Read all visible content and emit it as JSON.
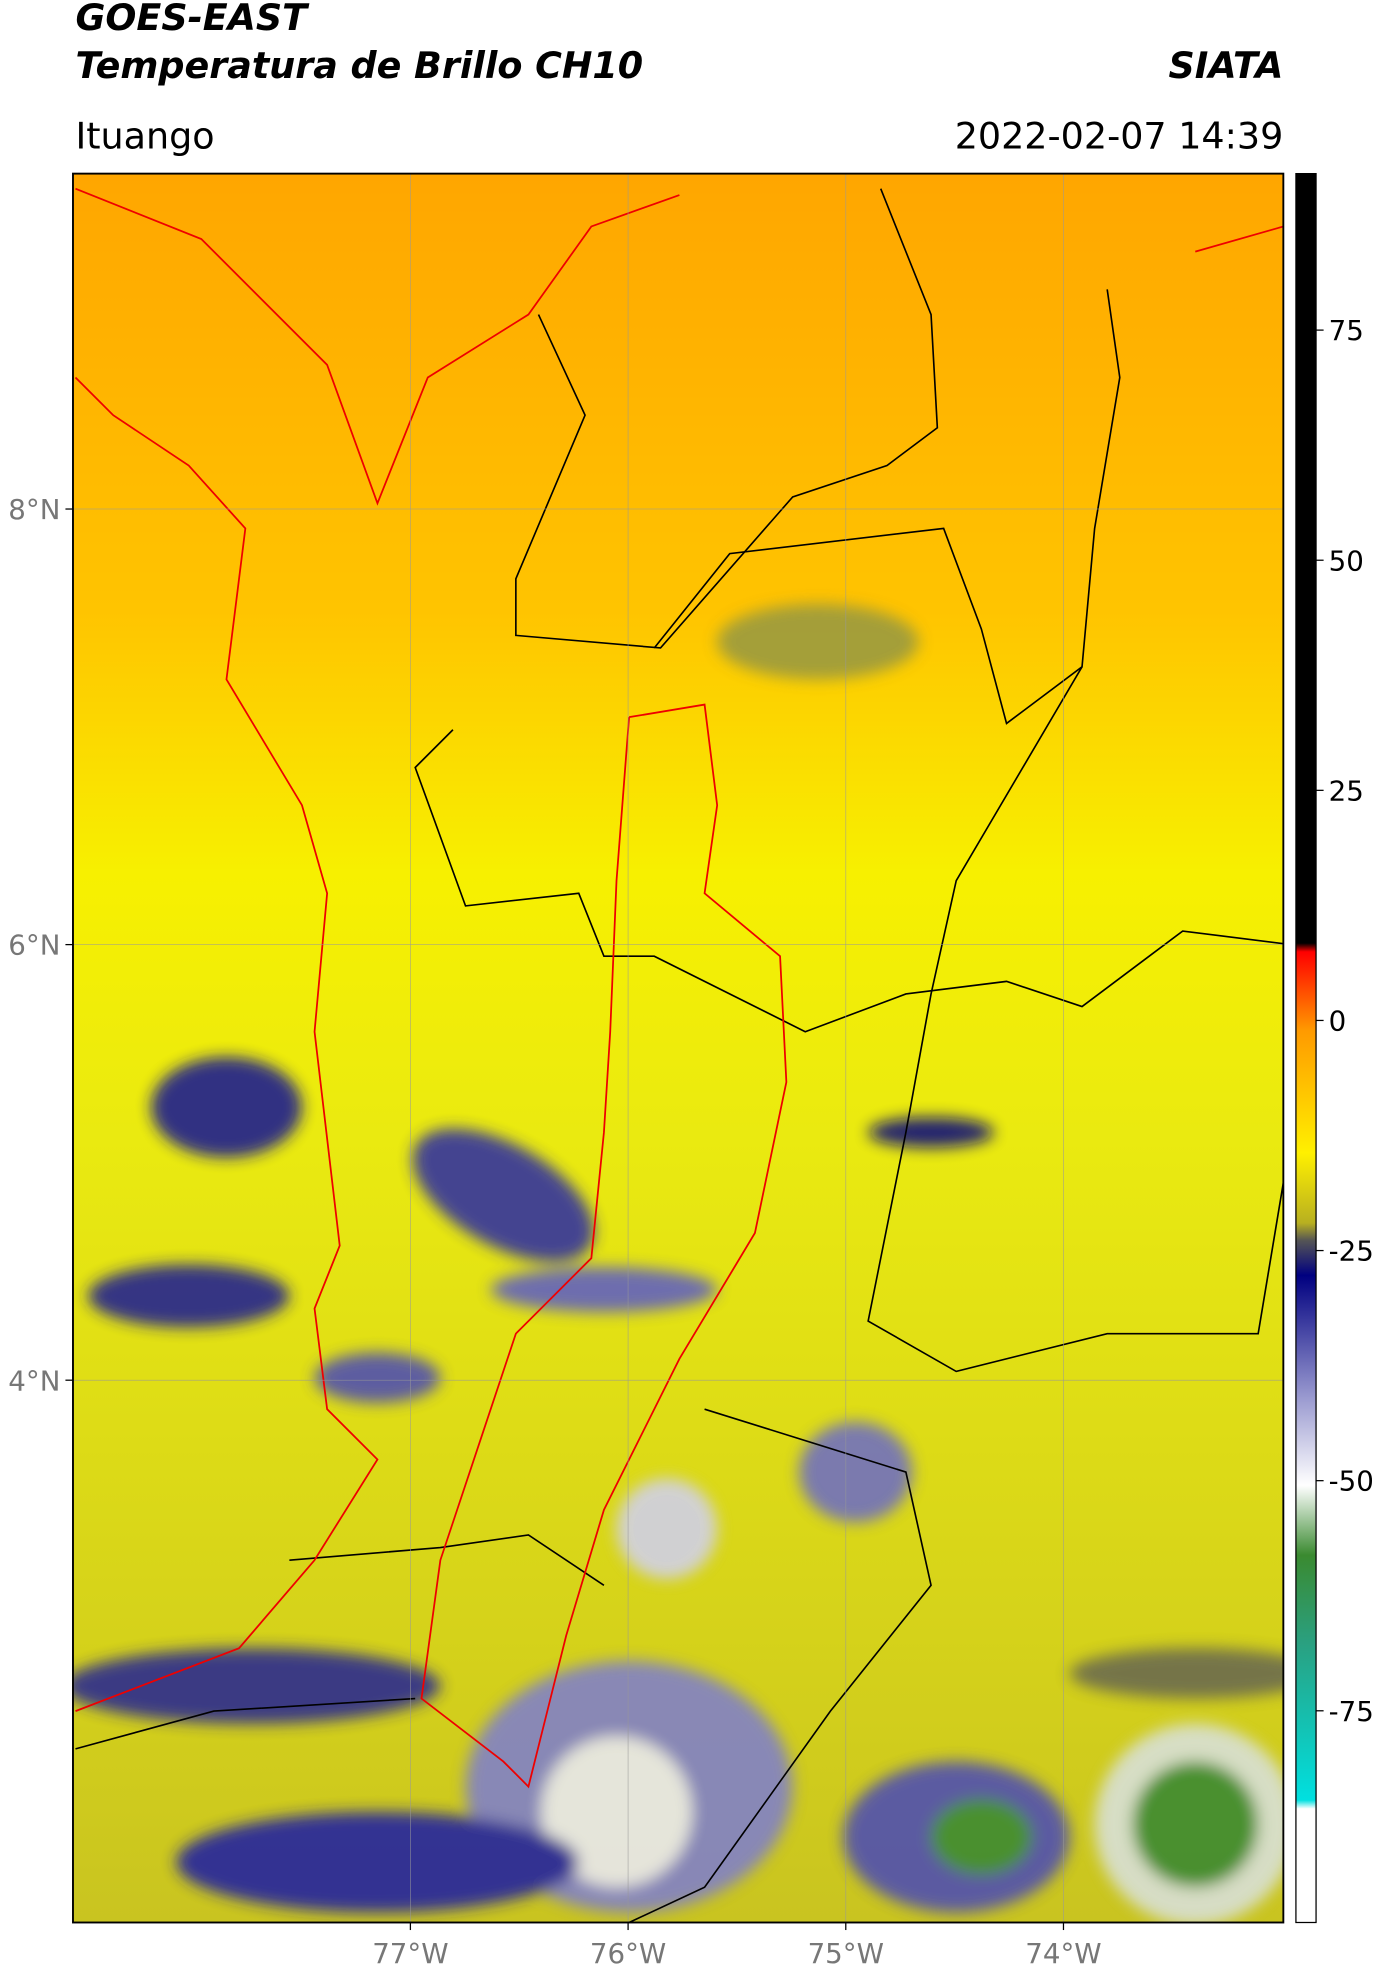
{
  "header": {
    "title": "GOES-EAST",
    "subtitle": "Temperatura de Brillo CH10",
    "brand": "SIATA",
    "location": "Ituango",
    "datetime": "2022-02-07 14:39"
  },
  "map": {
    "lon_range": [
      -78.55,
      -72.99
    ],
    "lat_range": [
      1.51,
      9.54
    ],
    "lon_ticks": [
      {
        "value": -77,
        "label": "77°W"
      },
      {
        "value": -76,
        "label": "76°W"
      },
      {
        "value": -75,
        "label": "75°W"
      },
      {
        "value": -74,
        "label": "74°W"
      }
    ],
    "lat_ticks": [
      {
        "value": 8,
        "label": "8°N"
      },
      {
        "value": 6,
        "label": "6°N"
      },
      {
        "value": 4,
        "label": "4°N"
      }
    ]
  },
  "colorbar": {
    "range": [
      -98,
      92
    ],
    "ticks": [
      75,
      50,
      25,
      0,
      -25,
      -50,
      -75
    ]
  }
}
